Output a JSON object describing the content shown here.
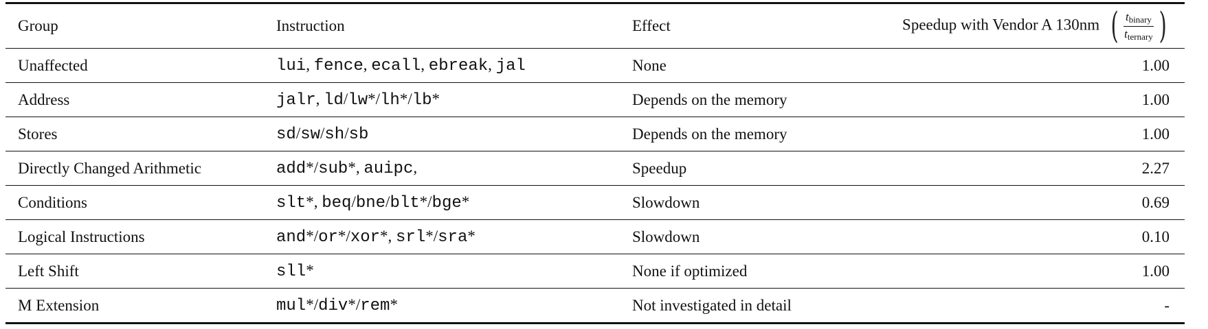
{
  "table": {
    "headers": {
      "group": "Group",
      "instruction": "Instruction",
      "effect": "Effect",
      "speedup": "Speedup with Vendor A 130nm",
      "frac_num_var": "t",
      "frac_num_sub": "binary",
      "frac_den_var": "t",
      "frac_den_sub": "ternary"
    },
    "rows": [
      {
        "group": "Unaffected",
        "instr": [
          {
            "t": "lui",
            "m": true
          },
          {
            "t": ", ",
            "m": false
          },
          {
            "t": "fence",
            "m": true
          },
          {
            "t": ", ",
            "m": false
          },
          {
            "t": "ecall",
            "m": true
          },
          {
            "t": ", ",
            "m": false
          },
          {
            "t": "ebreak",
            "m": true
          },
          {
            "t": ", ",
            "m": false
          },
          {
            "t": "jal",
            "m": true
          }
        ],
        "effect": "None",
        "speedup": "1.00"
      },
      {
        "group": "Address",
        "instr": [
          {
            "t": "jalr",
            "m": true
          },
          {
            "t": ", ",
            "m": false
          },
          {
            "t": "ld",
            "m": true
          },
          {
            "t": "/",
            "m": false
          },
          {
            "t": "lw",
            "m": true
          },
          {
            "t": "*/",
            "m": false
          },
          {
            "t": "lh",
            "m": true
          },
          {
            "t": "*/",
            "m": false
          },
          {
            "t": "lb",
            "m": true
          },
          {
            "t": "*",
            "m": false
          }
        ],
        "effect": "Depends on the memory",
        "speedup": "1.00"
      },
      {
        "group": "Stores",
        "instr": [
          {
            "t": "sd",
            "m": true
          },
          {
            "t": "/",
            "m": false
          },
          {
            "t": "sw",
            "m": true
          },
          {
            "t": "/",
            "m": false
          },
          {
            "t": "sh",
            "m": true
          },
          {
            "t": "/",
            "m": false
          },
          {
            "t": "sb",
            "m": true
          }
        ],
        "effect": "Depends on the memory",
        "speedup": "1.00"
      },
      {
        "group": "Directly Changed Arithmetic",
        "instr": [
          {
            "t": "add",
            "m": true
          },
          {
            "t": "*/",
            "m": false
          },
          {
            "t": "sub",
            "m": true
          },
          {
            "t": "*, ",
            "m": false
          },
          {
            "t": "auipc",
            "m": true
          },
          {
            "t": ",",
            "m": false
          }
        ],
        "effect": "Speedup",
        "speedup": "2.27"
      },
      {
        "group": "Conditions",
        "instr": [
          {
            "t": "slt",
            "m": true
          },
          {
            "t": "*, ",
            "m": false
          },
          {
            "t": "beq",
            "m": true
          },
          {
            "t": "/",
            "m": false
          },
          {
            "t": "bne",
            "m": true
          },
          {
            "t": "/",
            "m": false
          },
          {
            "t": "blt",
            "m": true
          },
          {
            "t": "*/",
            "m": false
          },
          {
            "t": "bge",
            "m": true
          },
          {
            "t": "*",
            "m": false
          }
        ],
        "effect": "Slowdown",
        "speedup": "0.69"
      },
      {
        "group": "Logical Instructions",
        "instr": [
          {
            "t": "and",
            "m": true
          },
          {
            "t": "*/",
            "m": false
          },
          {
            "t": "or",
            "m": true
          },
          {
            "t": "*/",
            "m": false
          },
          {
            "t": "xor",
            "m": true
          },
          {
            "t": "*, ",
            "m": false
          },
          {
            "t": "srl",
            "m": true
          },
          {
            "t": "*/",
            "m": false
          },
          {
            "t": "sra",
            "m": true
          },
          {
            "t": "*",
            "m": false
          }
        ],
        "effect": "Slowdown",
        "speedup": "0.10"
      },
      {
        "group": "Left Shift",
        "instr": [
          {
            "t": "sll",
            "m": true
          },
          {
            "t": "*",
            "m": false
          }
        ],
        "effect": "None if optimized",
        "speedup": "1.00"
      },
      {
        "group": "M Extension",
        "instr": [
          {
            "t": "mul",
            "m": true
          },
          {
            "t": "*/",
            "m": false
          },
          {
            "t": "div",
            "m": true
          },
          {
            "t": "*/",
            "m": false
          },
          {
            "t": "rem",
            "m": true
          },
          {
            "t": "*",
            "m": false
          }
        ],
        "effect": "Not investigated in detail",
        "speedup": "-"
      }
    ]
  }
}
